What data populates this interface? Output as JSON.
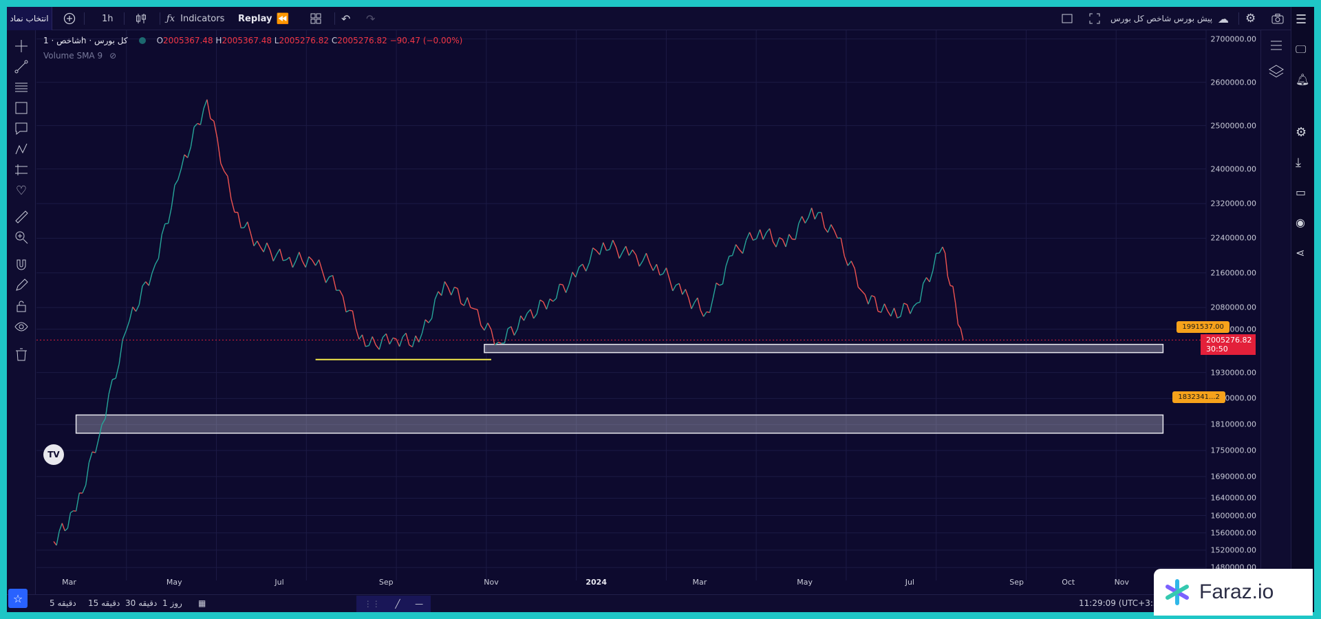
{
  "topbar": {
    "symbol_button": "انتخاب نماد",
    "interval": "1h",
    "indicators": "Indicators",
    "replay": "Replay",
    "exchange_title": "پیش بورس شاخص کل بورس"
  },
  "legend": {
    "title": "شاخص · 1h · کل بورس",
    "o_label": "O",
    "o_value": "2005367.48",
    "h_label": "H",
    "h_value": "2005367.48",
    "l_label": "L",
    "l_value": "2005276.82",
    "c_label": "C",
    "c_value": "2005276.82",
    "change": "−90.47 (−0.00%)",
    "volume": "Volume SMA 9"
  },
  "price_axis": [
    "2700000.00",
    "2600000.00",
    "2500000.00",
    "2400000.00",
    "2320000.00",
    "2240000.00",
    "2160000.00",
    "2080000.00",
    "2030000.00",
    "1930000.00",
    "1870000.00",
    "1810000.00",
    "1750000.00",
    "1690000.00",
    "1640000.00",
    "1600000.00",
    "1560000.00",
    "1520000.00",
    "1480000.00"
  ],
  "current_price": {
    "value": "2005276.82",
    "countdown": "30:50"
  },
  "time_axis": [
    "Mar",
    "May",
    "Jul",
    "Sep",
    "Nov",
    "2024",
    "Mar",
    "May",
    "Jul",
    "Sep",
    "Oct",
    "Nov"
  ],
  "callouts": {
    "upper": "1991537.00",
    "lower": "1832341...2"
  },
  "bottombar": {
    "intervals": [
      "5 دقیقه",
      "15 دقیقه",
      "30 دقیقه",
      "1 روز"
    ],
    "clock": "11:29:09 (UTC+3:30)"
  },
  "watermark": "Faraz.io",
  "colors": {
    "up": "#26a69a",
    "down": "#ef5350",
    "accent": "#2962ff",
    "callout": "#f7a21b",
    "current": "#e3203a"
  },
  "chart_data": {
    "type": "line",
    "title": "",
    "ylim": [
      1450000,
      2720000
    ],
    "x": [
      "2023-02-20",
      "2023-03-05",
      "2023-03-20",
      "2023-04-05",
      "2023-04-20",
      "2023-05-05",
      "2023-05-20",
      "2023-06-05",
      "2023-06-20",
      "2023-07-05",
      "2023-07-20",
      "2023-08-05",
      "2023-08-20",
      "2023-09-05",
      "2023-09-20",
      "2023-10-05",
      "2023-10-20",
      "2023-11-05",
      "2023-11-20",
      "2023-12-05",
      "2023-12-20",
      "2024-01-05",
      "2024-01-20",
      "2024-02-05",
      "2024-02-20",
      "2024-03-05",
      "2024-03-20",
      "2024-04-05",
      "2024-04-20",
      "2024-05-05",
      "2024-05-20",
      "2024-06-05",
      "2024-06-20",
      "2024-07-05",
      "2024-07-20",
      "2024-08-01"
    ],
    "series": [
      {
        "values": [
          1540000,
          1610000,
          1810000,
          2050000,
          2180000,
          2400000,
          2560000,
          2300000,
          2220000,
          2190000,
          2190000,
          2120000,
          1990000,
          2010000,
          2000000,
          2140000,
          2080000,
          2000000,
          2050000,
          2100000,
          2150000,
          2230000,
          2200000,
          2180000,
          2110000,
          2070000,
          2200000,
          2260000,
          2220000,
          2310000,
          2240000,
          2110000,
          2060000,
          2090000,
          2220000,
          2005000
        ]
      }
    ],
    "zones": [
      {
        "from_date": "2023-10-28",
        "to_date": "2024-11-25",
        "low": 1976000,
        "high": 1995000
      },
      {
        "from_date": "2023-03-05",
        "to_date": "2024-11-25",
        "low": 1790000,
        "high": 1832000
      }
    ]
  }
}
